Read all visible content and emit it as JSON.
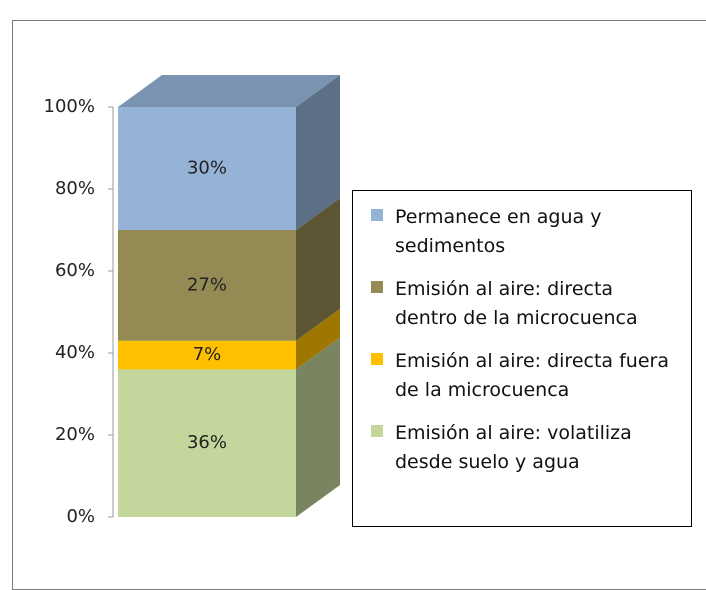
{
  "chart_data": {
    "type": "stacked-bar-3d",
    "series": [
      {
        "name": "Emisión al aire: volatiliza desde suelo y agua",
        "color": "#c3d69b",
        "values": [
          36
        ],
        "value_labels": [
          "36%"
        ]
      },
      {
        "name": "Emisión al aire: directa fuera de la microcuenca",
        "color": "#ffc000",
        "values": [
          7
        ],
        "value_labels": [
          "7%"
        ]
      },
      {
        "name": "Emisión al aire: directa dentro de la microcuenca",
        "color": "#948a54",
        "values": [
          27
        ],
        "value_labels": [
          "27%"
        ]
      },
      {
        "name": "Permanece en agua y sedimentos",
        "color": "#95b3d7",
        "values": [
          30
        ],
        "value_labels": [
          "30%"
        ]
      }
    ],
    "ylim": [
      0,
      100
    ],
    "yticks": [
      {
        "value": 0,
        "label": "0%"
      },
      {
        "value": 20,
        "label": "20%"
      },
      {
        "value": 40,
        "label": "40%"
      },
      {
        "value": 60,
        "label": "60%"
      },
      {
        "value": 80,
        "label": "80%"
      },
      {
        "value": 100,
        "label": "100%"
      }
    ],
    "legend": "right"
  }
}
